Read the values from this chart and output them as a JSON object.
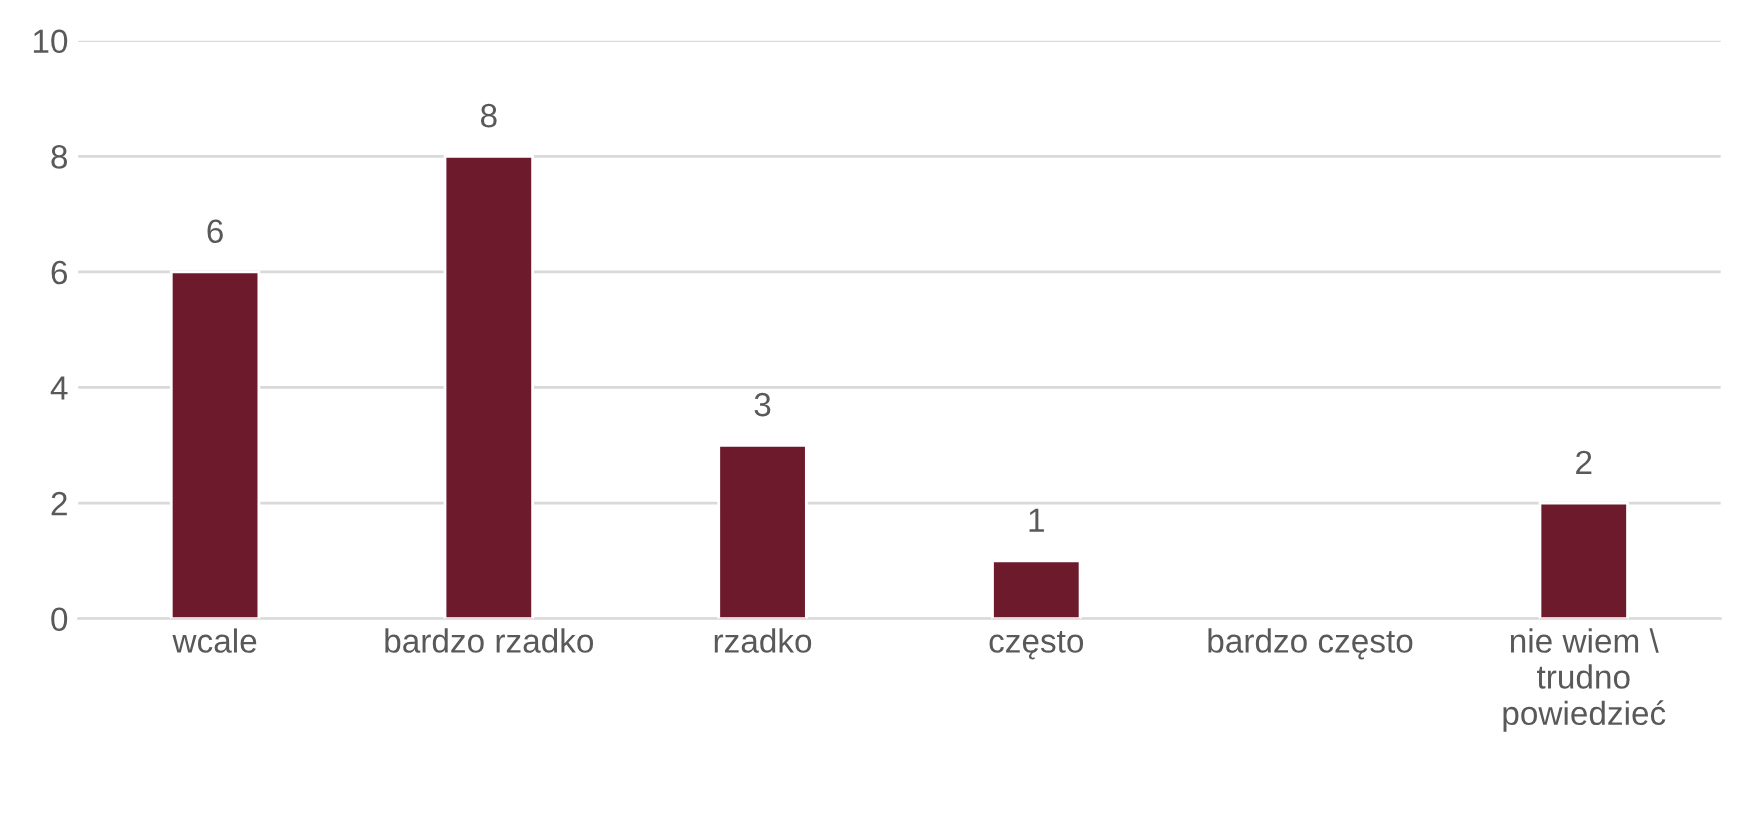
{
  "chart_data": {
    "type": "bar",
    "categories": [
      "wcale",
      "bardzo rzadko",
      "rzadko",
      "często",
      "bardzo często",
      "nie wiem \\\ntrudno\npowiedzieć"
    ],
    "values": [
      6,
      8,
      3,
      1,
      null,
      2
    ],
    "value_labels": [
      "6",
      "8",
      "3",
      "1",
      null,
      "2"
    ],
    "color": "#6d1a2c",
    "ylim": [
      0,
      10
    ],
    "yticks": [
      0,
      2,
      4,
      6,
      8,
      10
    ],
    "grid": "y",
    "legend": false
  }
}
